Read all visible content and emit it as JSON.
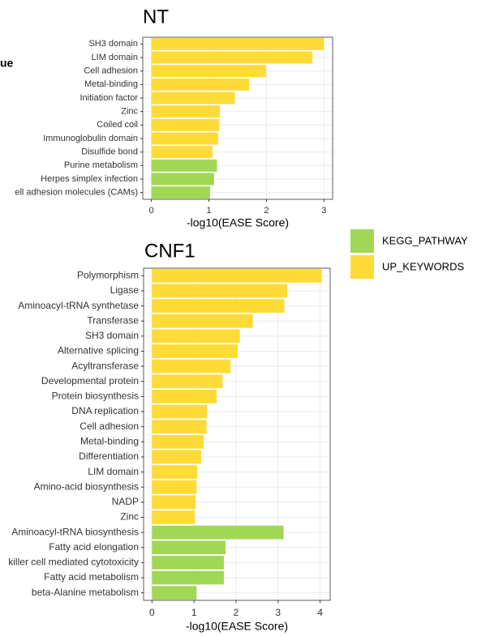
{
  "fragment": "ue",
  "legend": [
    {
      "name": "KEGG_PATHWAY",
      "color": "#a2d755"
    },
    {
      "name": "UP_KEYWORDS",
      "color": "#fedb37"
    }
  ],
  "chart_data": [
    {
      "type": "bar",
      "orientation": "horizontal",
      "title": "NT",
      "xlabel": "-log10(EASE Score)",
      "categories": [
        "SH3 domain",
        "LIM domain",
        "Cell adhesion",
        "Metal-binding",
        "Initiation factor",
        "Zinc",
        "Coiled coil",
        "Immunoglobulin domain",
        "Disulfide bond",
        "Purine metabolism",
        "Herpes simplex infection",
        "ell adhesion molecules (CAMs)"
      ],
      "values": [
        3.0,
        2.8,
        1.99,
        1.7,
        1.45,
        1.19,
        1.18,
        1.16,
        1.06,
        1.14,
        1.09,
        1.02
      ],
      "bar_colors": [
        "#fedb37",
        "#fedb37",
        "#fedb37",
        "#fedb37",
        "#fedb37",
        "#fedb37",
        "#fedb37",
        "#fedb37",
        "#fedb37",
        "#a2d755",
        "#a2d755",
        "#a2d755"
      ],
      "xlim": [
        -0.15,
        3.15
      ],
      "xticks": [
        0,
        1,
        2,
        3
      ],
      "grid": true
    },
    {
      "type": "bar",
      "orientation": "horizontal",
      "title": "CNF1",
      "xlabel": "-log10(EASE Score)",
      "categories": [
        "Polymorphism",
        "Ligase",
        "Aminoacyl-tRNA synthetase",
        "Transferase",
        "SH3 domain",
        "Alternative splicing",
        "Acyltransferase",
        "Developmental protein",
        "Protein biosynthesis",
        "DNA replication",
        "Cell adhesion",
        "Metal-binding",
        "Differentiation",
        "LIM domain",
        "Amino-acid biosynthesis",
        "NADP",
        "Zinc",
        "Aminoacyl-tRNA biosynthesis",
        "Fatty acid elongation",
        "killer cell mediated cytotoxicity",
        "Fatty acid metabolism",
        "beta-Alanine metabolism"
      ],
      "values": [
        4.04,
        3.22,
        3.15,
        2.4,
        2.09,
        2.04,
        1.87,
        1.68,
        1.54,
        1.31,
        1.3,
        1.23,
        1.17,
        1.08,
        1.06,
        1.04,
        1.02,
        3.13,
        1.75,
        1.71,
        1.71,
        1.06
      ],
      "bar_colors": [
        "#fedb37",
        "#fedb37",
        "#fedb37",
        "#fedb37",
        "#fedb37",
        "#fedb37",
        "#fedb37",
        "#fedb37",
        "#fedb37",
        "#fedb37",
        "#fedb37",
        "#fedb37",
        "#fedb37",
        "#fedb37",
        "#fedb37",
        "#fedb37",
        "#fedb37",
        "#a2d755",
        "#a2d755",
        "#a2d755",
        "#a2d755",
        "#a2d755"
      ],
      "xlim": [
        -0.2,
        4.24
      ],
      "xticks": [
        0,
        1,
        2,
        3,
        4
      ],
      "grid": true
    }
  ]
}
